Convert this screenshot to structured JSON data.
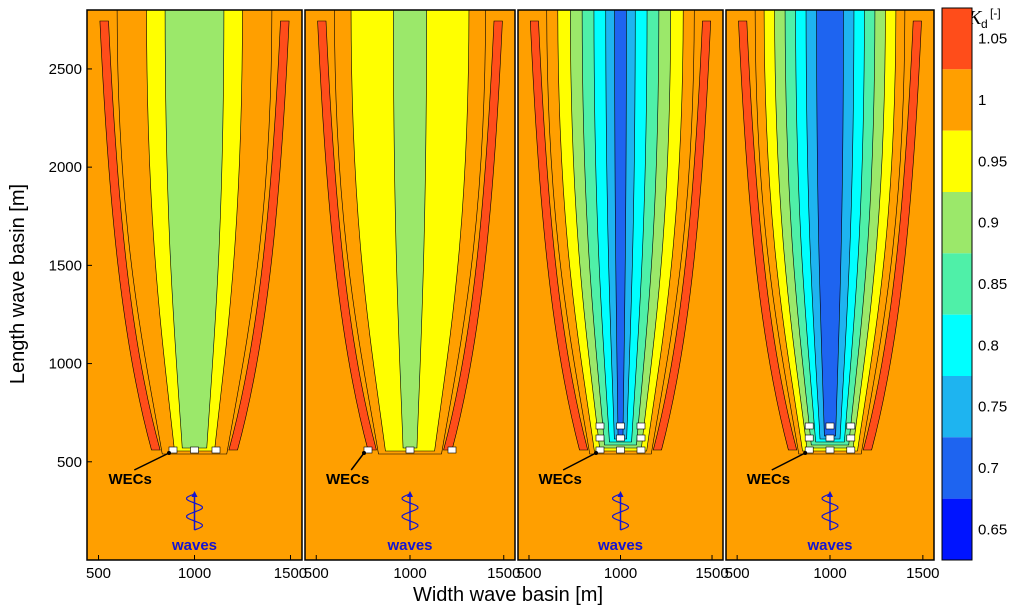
{
  "chart_data": {
    "type": "heatmap",
    "xlabel": "Width wave basin [m]",
    "ylabel": "Length wave basin [m]",
    "xlim": [
      440,
      1560
    ],
    "ylim": [
      0,
      2800
    ],
    "x_ticks": [
      "500",
      "1000",
      "1500"
    ],
    "y_ticks": [
      "500",
      "1000",
      "1500",
      "2000",
      "2500"
    ],
    "y_tick_values": [
      500,
      1000,
      1500,
      2000,
      2500
    ],
    "colorbar": {
      "title": "K",
      "title_sub": "d",
      "unit": "[-]",
      "labels": [
        "1.05",
        "1",
        "0.95",
        "0.9",
        "0.85",
        "0.8",
        "0.75",
        "0.7",
        "0.65"
      ],
      "levels": [
        1.075,
        1.025,
        0.975,
        0.925,
        0.875,
        0.825,
        0.775,
        0.725,
        0.675,
        0.625
      ],
      "colors": [
        "#ff4d1a",
        "#ff9f00",
        "#ffff00",
        "#9be86a",
        "#4ff0a8",
        "#00ffff",
        "#1eb4f0",
        "#1e64f0",
        "#0014ff"
      ]
    },
    "panels": [
      {
        "wec_rows": 1,
        "min_kd": 0.9,
        "annotation": "WECs",
        "waves_label": "waves"
      },
      {
        "wec_rows": 1,
        "min_kd": 0.9,
        "annotation": "WECs",
        "waves_label": "waves"
      },
      {
        "wec_rows": 3,
        "min_kd": 0.7,
        "annotation": "WECs",
        "waves_label": "waves"
      },
      {
        "wec_rows": 3,
        "min_kd": 0.65,
        "annotation": "WECs",
        "waves_label": "waves"
      }
    ]
  }
}
